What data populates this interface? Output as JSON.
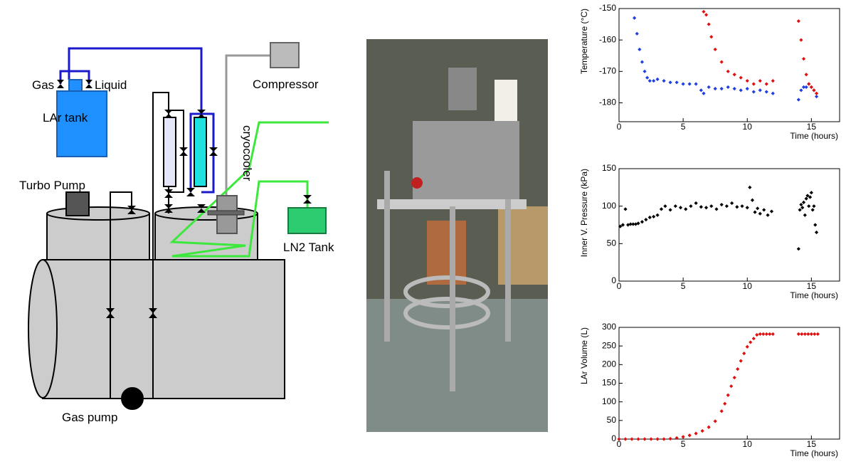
{
  "diagram": {
    "labels": {
      "gas": "Gas",
      "liquid": "Liquid",
      "lar_tank": "LAr tank",
      "compressor": "Compressor",
      "cryocooler": "cryocooler",
      "turbo_pump": "Turbo Pump",
      "ln2_tank": "LN2 Tank",
      "gas_pump": "Gas pump"
    }
  },
  "chart_data": [
    {
      "type": "scatter",
      "x_label": "Time (hours)",
      "y_label": "Temperature (°C)",
      "xlim": [
        0,
        17.2
      ],
      "xticks": [
        0,
        5,
        10,
        15
      ],
      "ylim": [
        -186,
        -150
      ],
      "yticks": [
        -180,
        -170,
        -160,
        -150
      ],
      "series": [
        {
          "color": "#1f3fe0",
          "x": [
            1.2,
            1.4,
            1.6,
            1.8,
            2.0,
            2.2,
            2.4,
            2.7,
            3.0,
            3.5,
            4.0,
            4.5,
            5.0,
            5.5,
            6.0,
            6.4,
            6.6,
            7.0,
            7.5,
            8.0,
            8.5,
            9.0,
            9.5,
            10.0,
            10.5,
            11.0,
            11.5,
            12.0,
            14.0,
            14.2,
            14.4,
            14.6,
            14.8,
            15.0,
            15.2,
            15.4
          ],
          "values": [
            -153,
            -158,
            -163,
            -167,
            -170,
            -172,
            -173,
            -173,
            -172.5,
            -173,
            -173.5,
            -173.5,
            -174,
            -174,
            -174,
            -176,
            -177,
            -175,
            -175.5,
            -175.5,
            -175,
            -175.5,
            -176,
            -175.5,
            -176.5,
            -176,
            -176.5,
            -177,
            -179,
            -176,
            -175,
            -175,
            -174,
            -175,
            -176,
            -178
          ]
        },
        {
          "color": "#e01010",
          "x": [
            6.6,
            6.8,
            7.0,
            7.2,
            7.5,
            8.0,
            8.5,
            9.0,
            9.5,
            10.0,
            10.5,
            11.0,
            11.5,
            12.0,
            14.0,
            14.2,
            14.4,
            14.6,
            14.8,
            15.0,
            15.2,
            15.4
          ],
          "values": [
            -151,
            -152,
            -155,
            -159,
            -163,
            -167,
            -170,
            -171,
            -172,
            -173,
            -174,
            -173,
            -174,
            -173,
            -154,
            -160,
            -166,
            -171,
            -174,
            -175,
            -176,
            -177
          ]
        }
      ]
    },
    {
      "type": "scatter",
      "x_label": "Time (hours)",
      "y_label": "Inner V. Pressure (kPa)",
      "xlim": [
        0,
        17.2
      ],
      "xticks": [
        0,
        5,
        10,
        15
      ],
      "ylim": [
        0,
        150
      ],
      "yticks": [
        0,
        50,
        100,
        150
      ],
      "series": [
        {
          "color": "#000000",
          "x": [
            0.1,
            0.3,
            0.5,
            0.7,
            0.9,
            1.1,
            1.3,
            1.5,
            1.8,
            2.1,
            2.4,
            2.7,
            3.0,
            3.3,
            3.6,
            4.0,
            4.4,
            4.8,
            5.2,
            5.6,
            6.0,
            6.4,
            6.8,
            7.2,
            7.6,
            8.0,
            8.4,
            8.8,
            9.2,
            9.6,
            10.0,
            10.2,
            10.4,
            10.6,
            10.8,
            11.0,
            11.3,
            11.6,
            11.9,
            14.0,
            14.1,
            14.2,
            14.3,
            14.4,
            14.5,
            14.6,
            14.7,
            14.8,
            14.9,
            15.0,
            15.1,
            15.2,
            15.3,
            15.4
          ],
          "values": [
            73,
            75,
            96,
            75,
            76,
            76,
            76,
            77,
            79,
            82,
            85,
            86,
            88,
            96,
            100,
            95,
            100,
            98,
            96,
            100,
            104,
            99,
            98,
            100,
            96,
            102,
            100,
            104,
            99,
            100,
            98,
            125,
            108,
            92,
            97,
            90,
            95,
            88,
            93,
            43,
            95,
            102,
            98,
            105,
            88,
            110,
            114,
            100,
            112,
            118,
            95,
            100,
            75,
            65
          ]
        }
      ]
    },
    {
      "type": "scatter",
      "x_label": "Time (hours)",
      "y_label": "LAr Volume (L)",
      "xlim": [
        0,
        17.2
      ],
      "xticks": [
        0,
        5,
        10,
        15
      ],
      "ylim": [
        0,
        300
      ],
      "yticks": [
        0,
        50,
        100,
        150,
        200,
        250,
        300
      ],
      "series": [
        {
          "color": "#e01010",
          "x": [
            0,
            0.5,
            1,
            1.5,
            2,
            2.5,
            3,
            3.5,
            4,
            4.5,
            5,
            5.5,
            6,
            6.5,
            7,
            7.5,
            8,
            8.25,
            8.5,
            8.75,
            9,
            9.25,
            9.5,
            9.75,
            10,
            10.25,
            10.5,
            10.75,
            11,
            11.25,
            11.5,
            11.75,
            12,
            14,
            14.25,
            14.5,
            14.75,
            15,
            15.25,
            15.5
          ],
          "values": [
            0,
            0,
            0,
            0,
            0,
            0,
            0,
            0,
            1,
            3,
            6,
            10,
            15,
            22,
            32,
            48,
            75,
            95,
            118,
            142,
            165,
            188,
            210,
            230,
            248,
            260,
            270,
            280,
            282,
            282,
            282,
            282,
            282,
            282,
            282,
            282,
            282,
            282,
            282,
            282
          ]
        }
      ]
    }
  ]
}
